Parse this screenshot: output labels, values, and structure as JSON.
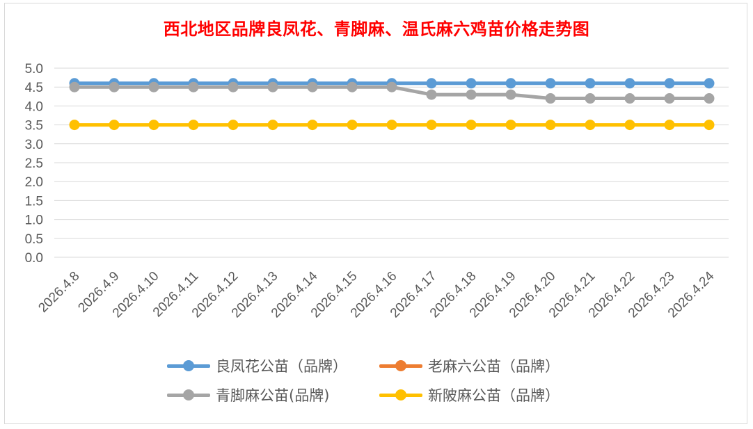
{
  "chart_data": {
    "type": "line",
    "title": "西北地区品牌良凤花、青脚麻、温氏麻六鸡苗价格走势图",
    "categories": [
      "2026.4.8",
      "2026.4.9",
      "2026.4.10",
      "2026.4.11",
      "2026.4.12",
      "2026.4.13",
      "2026.4.14",
      "2026.4.15",
      "2026.4.16",
      "2026.4.17",
      "2026.4.18",
      "2026.4.19",
      "2026.4.20",
      "2026.4.21",
      "2026.4.22",
      "2026.4.23",
      "2026.4.24"
    ],
    "ylim": [
      0,
      5.0
    ],
    "yticks": [
      "0.0",
      "0.5",
      "1.0",
      "1.5",
      "2.0",
      "2.5",
      "3.0",
      "3.5",
      "4.0",
      "4.5",
      "5.0"
    ],
    "grid": true,
    "legend_position": "bottom",
    "series": [
      {
        "name": "良凤花公苗（品牌）",
        "color": "#5b9bd5",
        "values": [
          4.6,
          4.6,
          4.6,
          4.6,
          4.6,
          4.6,
          4.6,
          4.6,
          4.6,
          4.6,
          4.6,
          4.6,
          4.6,
          4.6,
          4.6,
          4.6,
          4.6
        ]
      },
      {
        "name": "老麻六公苗（品牌）",
        "color": "#ed7d31",
        "values": [
          null,
          null,
          null,
          null,
          null,
          null,
          null,
          null,
          null,
          null,
          null,
          null,
          null,
          null,
          null,
          null,
          null
        ]
      },
      {
        "name": "青脚麻公苗(品牌)",
        "color": "#a5a5a5",
        "values": [
          4.5,
          4.5,
          4.5,
          4.5,
          4.5,
          4.5,
          4.5,
          4.5,
          4.5,
          4.3,
          4.3,
          4.3,
          4.2,
          4.2,
          4.2,
          4.2,
          4.2
        ]
      },
      {
        "name": "新陂麻公苗（品牌）",
        "color": "#ffc000",
        "values": [
          3.5,
          3.5,
          3.5,
          3.5,
          3.5,
          3.5,
          3.5,
          3.5,
          3.5,
          3.5,
          3.5,
          3.5,
          3.5,
          3.5,
          3.5,
          3.5,
          3.5
        ]
      }
    ]
  }
}
